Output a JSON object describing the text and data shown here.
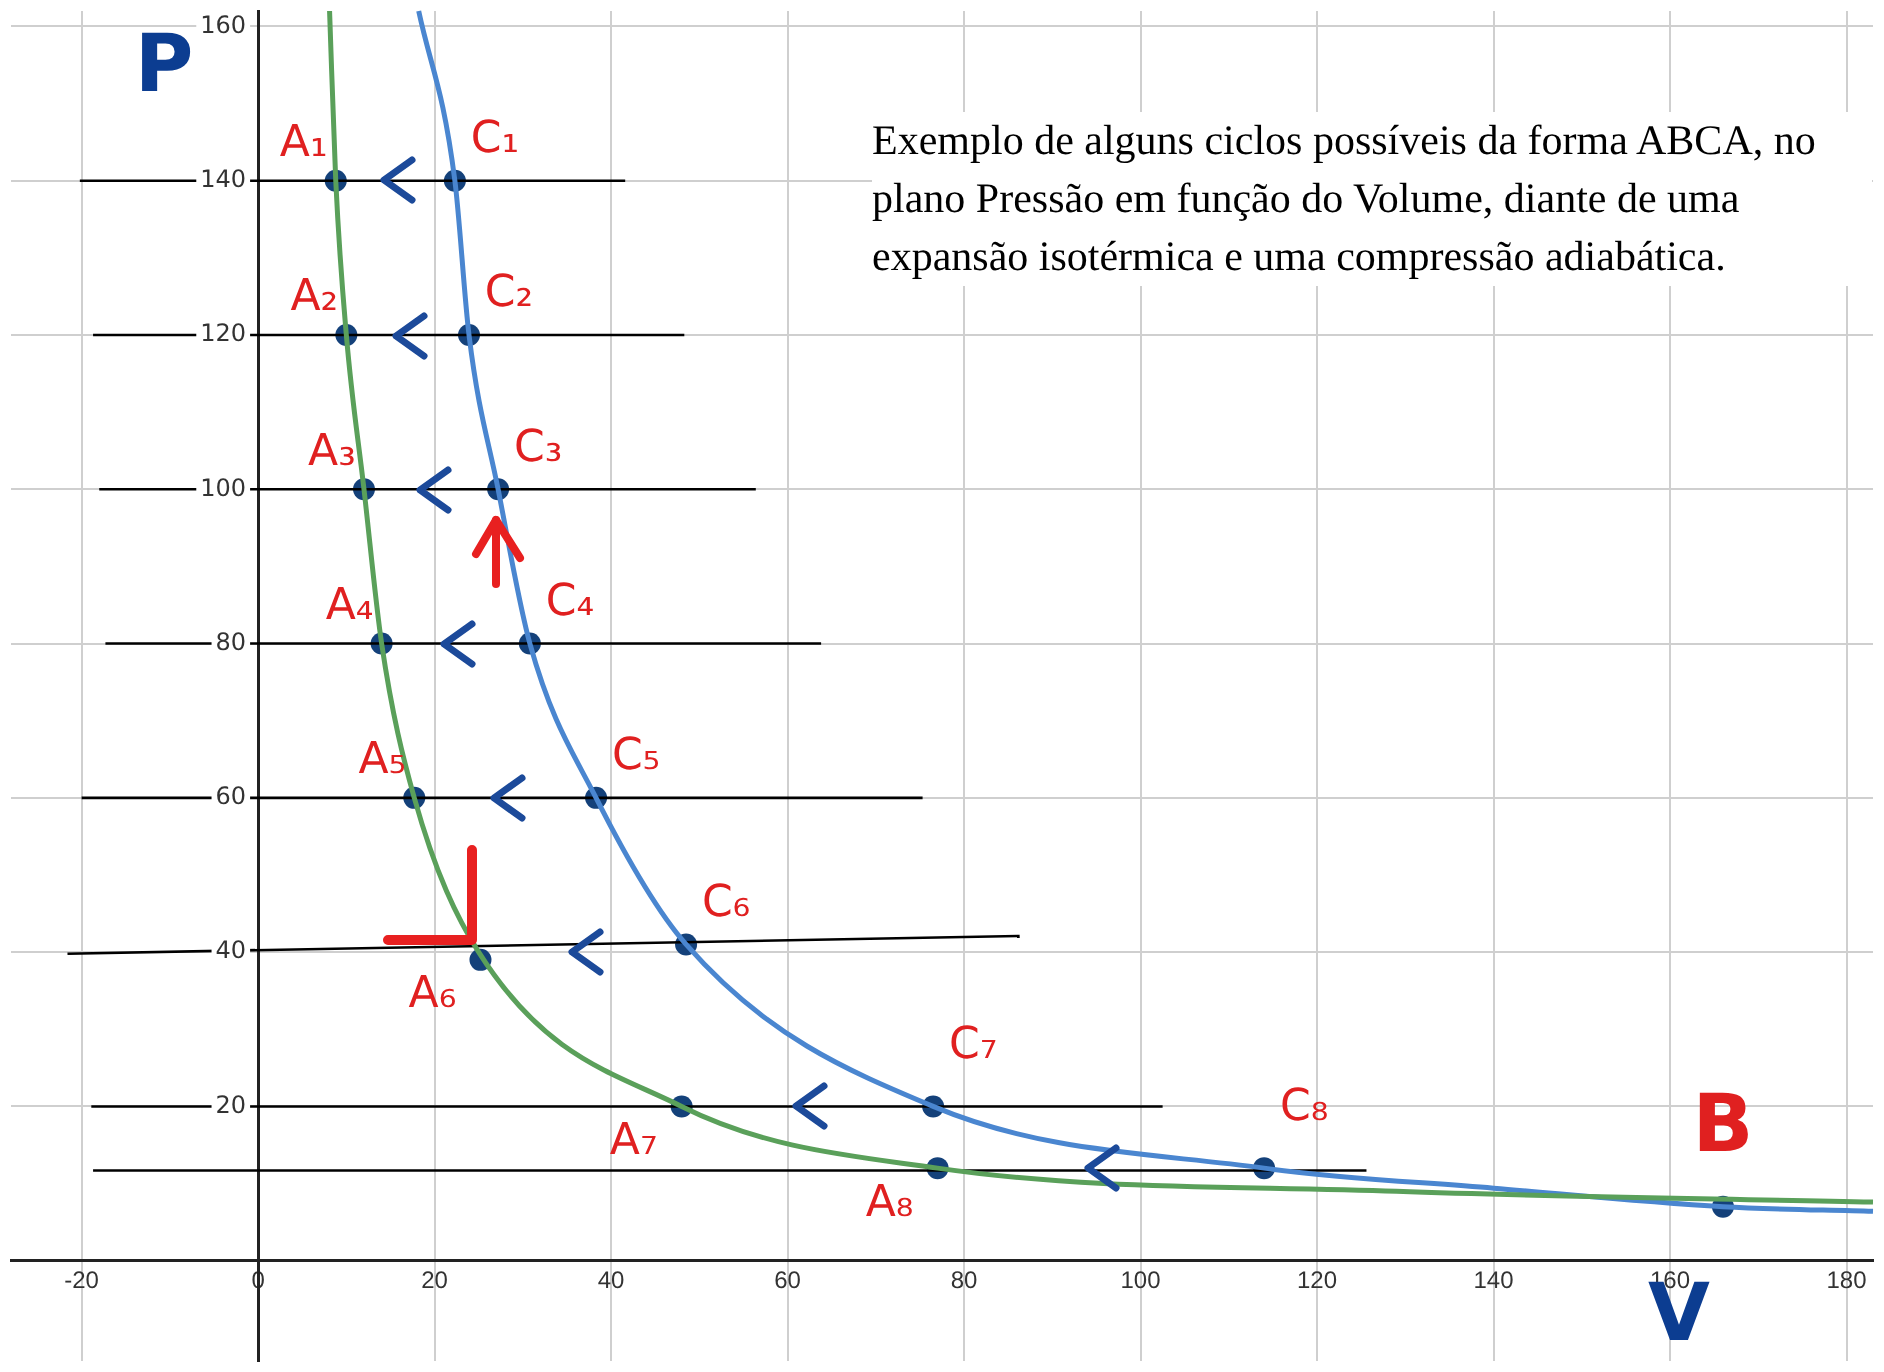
{
  "chart_data": {
    "type": "line",
    "xlabel": "V",
    "ylabel": "P",
    "xlim": [
      -28,
      183
    ],
    "ylim": [
      -13,
      162
    ],
    "xticks": [
      -20,
      0,
      20,
      40,
      60,
      80,
      100,
      120,
      140,
      160,
      180
    ],
    "yticks": [
      20,
      40,
      60,
      80,
      100,
      120,
      140,
      160
    ],
    "grid": true,
    "series": [
      {
        "type": "line",
        "color": "#5aa05a",
        "marker": "none",
        "x": [
          8.1,
          8.8,
          10,
          12,
          14,
          17.7,
          25,
          48,
          77,
          129,
          183
        ],
        "values": [
          162,
          140,
          120,
          100,
          80,
          60,
          40,
          20,
          12,
          9,
          7.6
        ]
      },
      {
        "type": "line",
        "color": "#4a86d0",
        "marker": "none",
        "x": [
          18.2,
          22.3,
          23.9,
          27.2,
          30.8,
          38.3,
          48.5,
          76.5,
          114,
          140,
          166,
          183
        ],
        "values": [
          162,
          140,
          120,
          100,
          80,
          60,
          41,
          20,
          12,
          9.4,
          7,
          6.4
        ]
      },
      {
        "type": "line",
        "color": "#000000",
        "marker": "none",
        "x": [
          -20.2,
          41.6
        ],
        "values": [
          140,
          140
        ]
      },
      {
        "type": "line",
        "color": "#000000",
        "marker": "none",
        "x": [
          -18.7,
          48.3
        ],
        "values": [
          120,
          120
        ]
      },
      {
        "type": "line",
        "color": "#000000",
        "marker": "none",
        "x": [
          -18,
          56.4
        ],
        "values": [
          100,
          100
        ]
      },
      {
        "type": "line",
        "color": "#000000",
        "marker": "none",
        "x": [
          -17.3,
          63.8
        ],
        "values": [
          80,
          80
        ]
      },
      {
        "type": "line",
        "color": "#000000",
        "marker": "none",
        "x": [
          -20,
          75.3
        ],
        "values": [
          60,
          60
        ]
      },
      {
        "type": "line",
        "color": "#000000",
        "marker": "none",
        "x": [
          -21.6,
          86.3
        ],
        "values": [
          39.8,
          42.1
        ]
      },
      {
        "type": "line",
        "color": "#000000",
        "marker": "none",
        "x": [
          -18.9,
          102.5
        ],
        "values": [
          20,
          20
        ]
      },
      {
        "type": "line",
        "color": "#000000",
        "marker": "none",
        "x": [
          -18.7,
          125.6
        ],
        "values": [
          11.7,
          11.7
        ]
      },
      {
        "type": "scatter",
        "color": "#14417a",
        "marker": "circle",
        "x": [
          8.8,
          10,
          12,
          14,
          17.7,
          25.2,
          48,
          77
        ],
        "values": [
          140,
          120,
          100,
          80,
          60,
          39,
          20,
          12
        ]
      },
      {
        "type": "scatter",
        "color": "#14417a",
        "marker": "circle",
        "x": [
          22.3,
          23.9,
          27.2,
          30.8,
          38.3,
          48.5,
          76.5,
          114
        ],
        "values": [
          140,
          120,
          100,
          80,
          60,
          41,
          20,
          12
        ]
      },
      {
        "type": "scatter",
        "color": "#14417a",
        "marker": "circle",
        "x": [
          166
        ],
        "values": [
          7
        ]
      }
    ],
    "annotations": [
      "Exemplo de alguns ciclos possíveis da forma ABCA, no plano Pressão em função do Volume, diante de uma expansão isotérmica e uma compressão adiabática.",
      {
        "text": "A₁",
        "x": 8.8,
        "y": 140
      },
      {
        "text": "A₂",
        "x": 10,
        "y": 120
      },
      {
        "text": "A₃",
        "x": 12,
        "y": 100
      },
      {
        "text": "A₄",
        "x": 14,
        "y": 80
      },
      {
        "text": "A₅",
        "x": 17.7,
        "y": 60
      },
      {
        "text": "A₆",
        "x": 25.2,
        "y": 39
      },
      {
        "text": "A₇",
        "x": 48,
        "y": 20
      },
      {
        "text": "A₈",
        "x": 77,
        "y": 12
      },
      {
        "text": "C₁",
        "x": 22.3,
        "y": 140
      },
      {
        "text": "C₂",
        "x": 23.9,
        "y": 120
      },
      {
        "text": "C₃",
        "x": 27.2,
        "y": 100
      },
      {
        "text": "C₄",
        "x": 30.8,
        "y": 80
      },
      {
        "text": "C₅",
        "x": 38.3,
        "y": 60
      },
      {
        "text": "C₆",
        "x": 48.5,
        "y": 41
      },
      {
        "text": "C₇",
        "x": 76.5,
        "y": 20
      },
      {
        "text": "C₈",
        "x": 114,
        "y": 12
      },
      {
        "text": "B",
        "x": 166,
        "y": 7
      }
    ]
  }
}
